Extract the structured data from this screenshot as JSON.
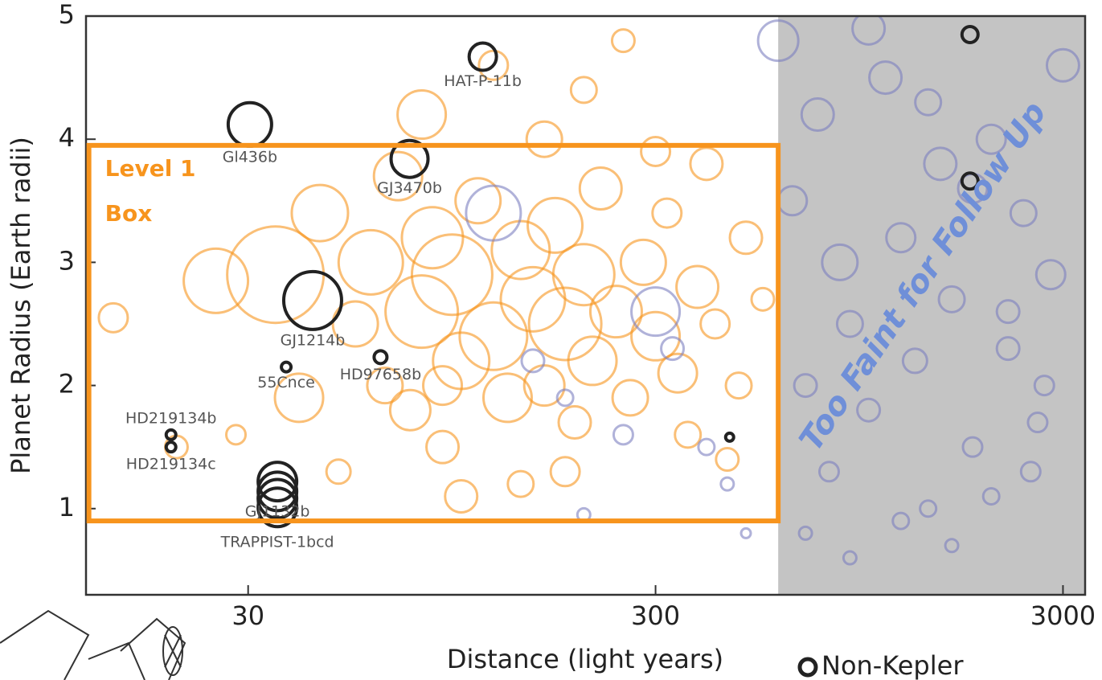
{
  "chart_data": {
    "type": "scatter",
    "x_label": "Distance (light years)",
    "y_label": "Planet Radius (Earth radii)",
    "log_x": true,
    "xlim": [
      12,
      3400
    ],
    "ylim": [
      0.3,
      5
    ],
    "xticks": [
      30,
      300,
      3000
    ],
    "yticks": [
      1,
      2,
      3,
      4,
      5
    ],
    "level1_box": {
      "label_lines": [
        "Level 1",
        "Box"
      ],
      "x": [
        12.2,
        600
      ],
      "y": [
        0.9,
        3.95
      ],
      "color": "#f7941d"
    },
    "faint_region": {
      "label": "Too Faint for Follow Up",
      "xmin": 600,
      "color": "#c4c4c4",
      "label_color": "#6f8fd8"
    },
    "series": [
      {
        "color": "#f7941d",
        "x": [
          14,
          20,
          25,
          28,
          35,
          40,
          45,
          50,
          55,
          60,
          65,
          70,
          75,
          80,
          85,
          90,
          95,
          100,
          110,
          120,
          130,
          140,
          150,
          160,
          170,
          180,
          190,
          200,
          210,
          220,
          240,
          260,
          280,
          300,
          320,
          340,
          360,
          380,
          400,
          420,
          450,
          480,
          500,
          550,
          80,
          120,
          160,
          200,
          250,
          300,
          100,
          140,
          90,
          180
        ],
        "values": [
          2.55,
          1.5,
          2.85,
          1.6,
          2.9,
          1.9,
          3.4,
          1.3,
          2.5,
          3.0,
          2.0,
          3.7,
          1.8,
          2.6,
          3.2,
          1.5,
          2.9,
          2.2,
          3.5,
          2.4,
          1.9,
          3.1,
          2.7,
          2.0,
          3.3,
          2.5,
          1.7,
          2.9,
          2.2,
          3.6,
          2.6,
          1.9,
          3.0,
          2.4,
          3.4,
          2.1,
          1.6,
          2.8,
          3.8,
          2.5,
          1.4,
          2.0,
          3.2,
          2.7,
          4.2,
          4.6,
          4.0,
          4.4,
          4.8,
          3.9,
          1.1,
          1.2,
          2.0,
          1.3
        ],
        "sizes": [
          18,
          14,
          40,
          12,
          60,
          30,
          35,
          15,
          28,
          40,
          22,
          30,
          25,
          45,
          38,
          20,
          50,
          35,
          28,
          42,
          30,
          36,
          40,
          25,
          34,
          45,
          20,
          38,
          30,
          26,
          32,
          22,
          28,
          30,
          18,
          24,
          16,
          26,
          20,
          18,
          14,
          16,
          20,
          14,
          30,
          18,
          22,
          16,
          14,
          18,
          20,
          16,
          24,
          18
        ]
      },
      {
        "color": "#7b7fc0",
        "x": [
          600,
          650,
          700,
          750,
          800,
          850,
          900,
          1000,
          1100,
          1200,
          1300,
          1400,
          1500,
          1600,
          1800,
          2000,
          2200,
          2400,
          2600,
          2800,
          3000,
          700,
          900,
          1200,
          1600,
          2000,
          2500,
          1000,
          1400,
          1800,
          2200,
          2700,
          150,
          200,
          250,
          300,
          330,
          400,
          450,
          500,
          120,
          180
        ],
        "values": [
          4.8,
          3.5,
          2.0,
          4.2,
          1.3,
          3.0,
          2.5,
          1.8,
          4.5,
          3.2,
          2.2,
          1.0,
          3.8,
          2.7,
          1.5,
          4.0,
          2.3,
          3.4,
          1.7,
          2.9,
          4.6,
          0.8,
          0.6,
          0.9,
          0.7,
          1.1,
          1.3,
          4.9,
          4.3,
          3.6,
          2.6,
          2.0,
          2.2,
          0.95,
          1.6,
          2.6,
          2.3,
          1.5,
          1.2,
          0.8,
          3.4,
          1.9
        ],
        "sizes": [
          25,
          18,
          14,
          20,
          12,
          22,
          16,
          14,
          20,
          18,
          15,
          10,
          20,
          16,
          12,
          18,
          14,
          16,
          12,
          18,
          20,
          8,
          8,
          10,
          8,
          10,
          12,
          20,
          16,
          18,
          14,
          12,
          14,
          8,
          12,
          30,
          14,
          10,
          8,
          6,
          34,
          10
        ]
      },
      {
        "name": "Non-Kepler",
        "color": "#222222",
        "x": [
          113,
          30.3,
          74.7,
          43.2,
          37.2,
          63.4,
          19.4,
          19.4,
          35.4,
          35.4,
          35.4,
          35.4,
          456,
          1774,
          1774
        ],
        "values": [
          4.67,
          4.12,
          3.84,
          2.69,
          2.15,
          2.23,
          1.6,
          1.5,
          1.22,
          1.14,
          1.08,
          1.01,
          1.58,
          4.85,
          3.66
        ],
        "sizes": [
          17,
          27,
          23,
          36,
          6,
          8,
          6,
          6,
          24,
          24,
          24,
          24,
          5,
          10,
          10
        ],
        "labels": [
          "HAT-P-11b",
          "Gl436b",
          "GJ3470b",
          "GJ1214b",
          "55Cnce",
          "HD97658b",
          "HD219134b",
          "HD219134c",
          "GJ1132b",
          null,
          null,
          "TRAPPIST-1bcd",
          null,
          null,
          null
        ]
      }
    ]
  }
}
